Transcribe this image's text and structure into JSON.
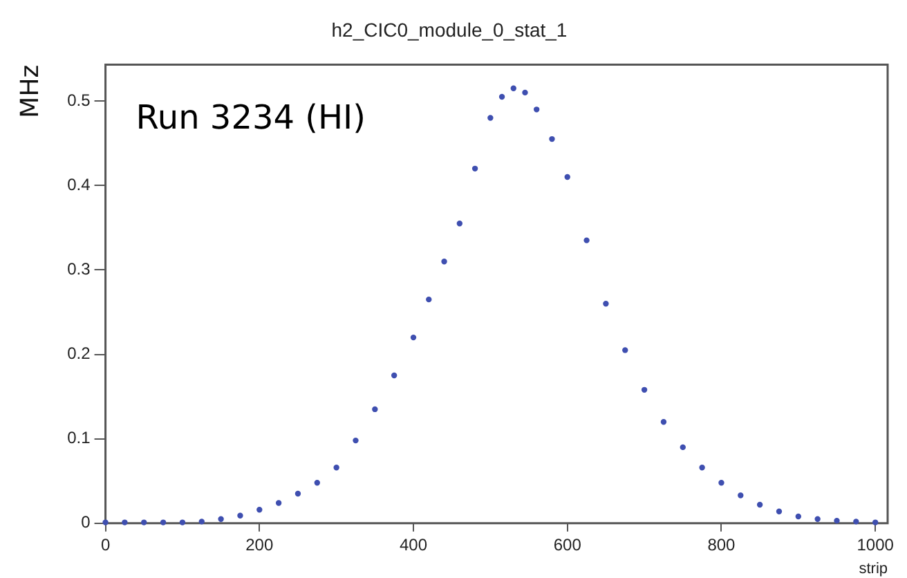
{
  "chart_data": {
    "type": "scatter",
    "title": "h2_CIC0_module_0_stat_1",
    "xlabel": "strip",
    "ylabel": "MHz",
    "annotations": [
      "Run 3234 (HI)"
    ],
    "x": [
      0,
      25,
      50,
      75,
      100,
      125,
      150,
      175,
      200,
      225,
      250,
      275,
      300,
      325,
      350,
      375,
      400,
      420,
      440,
      460,
      480,
      500,
      515,
      530,
      545,
      560,
      580,
      600,
      625,
      650,
      675,
      700,
      725,
      750,
      775,
      800,
      825,
      850,
      875,
      900,
      925,
      950,
      975,
      1000
    ],
    "series": [
      {
        "color": "#3f4fb0",
        "values": [
          0.001,
          0.001,
          0.001,
          0.001,
          0.001,
          0.002,
          0.005,
          0.009,
          0.016,
          0.024,
          0.035,
          0.048,
          0.066,
          0.098,
          0.135,
          0.175,
          0.22,
          0.265,
          0.31,
          0.355,
          0.42,
          0.48,
          0.505,
          0.515,
          0.51,
          0.49,
          0.455,
          0.41,
          0.335,
          0.26,
          0.205,
          0.158,
          0.12,
          0.09,
          0.066,
          0.048,
          0.033,
          0.022,
          0.014,
          0.008,
          0.005,
          0.003,
          0.002,
          0.001
        ]
      }
    ],
    "xlim": [
      0,
      1016
    ],
    "xticks": [
      0,
      200,
      400,
      600,
      800,
      1000
    ],
    "ylim": [
      0,
      0.543
    ],
    "yticks": [
      0,
      0.1,
      0.2,
      0.3,
      0.4,
      0.5
    ],
    "marker": "circle",
    "legend": false,
    "grid": false
  }
}
